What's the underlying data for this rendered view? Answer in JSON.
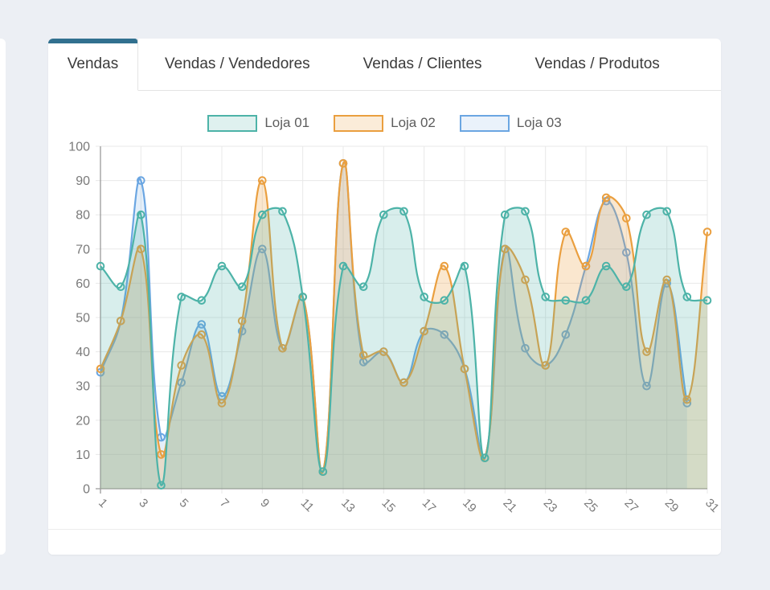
{
  "window": {
    "background": "#ECEFF4",
    "card_background": "#FFFFFF",
    "accent_color": "#31708F"
  },
  "tabs": [
    {
      "label": "Vendas",
      "active": true
    },
    {
      "label": "Vendas / Vendedores",
      "active": false
    },
    {
      "label": "Vendas / Clientes",
      "active": false
    },
    {
      "label": "Vendas / Produtos",
      "active": false
    }
  ],
  "chart_data": {
    "type": "area",
    "legend_position": "top",
    "grid": true,
    "ylim": [
      0,
      100
    ],
    "y_ticks": [
      0,
      10,
      20,
      30,
      40,
      50,
      60,
      70,
      80,
      90,
      100
    ],
    "x": [
      1,
      2,
      3,
      4,
      5,
      6,
      7,
      8,
      9,
      10,
      11,
      12,
      13,
      14,
      15,
      16,
      17,
      18,
      19,
      20,
      21,
      22,
      23,
      24,
      25,
      26,
      27,
      28,
      29,
      30,
      31
    ],
    "x_tick_labels": [
      "1",
      "3",
      "5",
      "7",
      "9",
      "11",
      "13",
      "15",
      "17",
      "19",
      "21",
      "23",
      "25",
      "27",
      "29",
      "31"
    ],
    "series": [
      {
        "name": "Loja 01",
        "color": "#4DB3A8",
        "fill": "rgba(77,179,168,0.22)",
        "swatch_fill": "rgba(77,179,168,0.18)",
        "values": [
          65,
          59,
          80,
          1,
          56,
          55,
          65,
          59,
          80,
          81,
          56,
          5,
          65,
          59,
          80,
          81,
          56,
          55,
          65,
          9,
          80,
          81,
          56,
          55,
          55,
          65,
          59,
          80,
          81,
          56,
          55
        ]
      },
      {
        "name": "Loja 02",
        "color": "#EA9F3F",
        "fill": "rgba(234,159,63,0.25)",
        "swatch_fill": "rgba(234,159,63,0.20)",
        "values": [
          35,
          49,
          70,
          10,
          36,
          45,
          25,
          49,
          90,
          41,
          56,
          5,
          95,
          39,
          40,
          31,
          46,
          65,
          35,
          9,
          70,
          61,
          36,
          75,
          65,
          85,
          79,
          40,
          61,
          26,
          75
        ]
      },
      {
        "name": "Loja 03",
        "color": "#6BA6E2",
        "fill": "rgba(107,166,226,0.18)",
        "swatch_fill": "rgba(107,166,226,0.14)",
        "values": [
          34,
          49,
          90,
          15,
          31,
          48,
          27,
          46,
          70,
          41,
          56,
          5,
          95,
          37,
          40,
          31,
          46,
          45,
          35,
          9,
          70,
          41,
          36,
          45,
          65,
          84,
          69,
          30,
          60,
          25,
          null
        ]
      }
    ]
  }
}
